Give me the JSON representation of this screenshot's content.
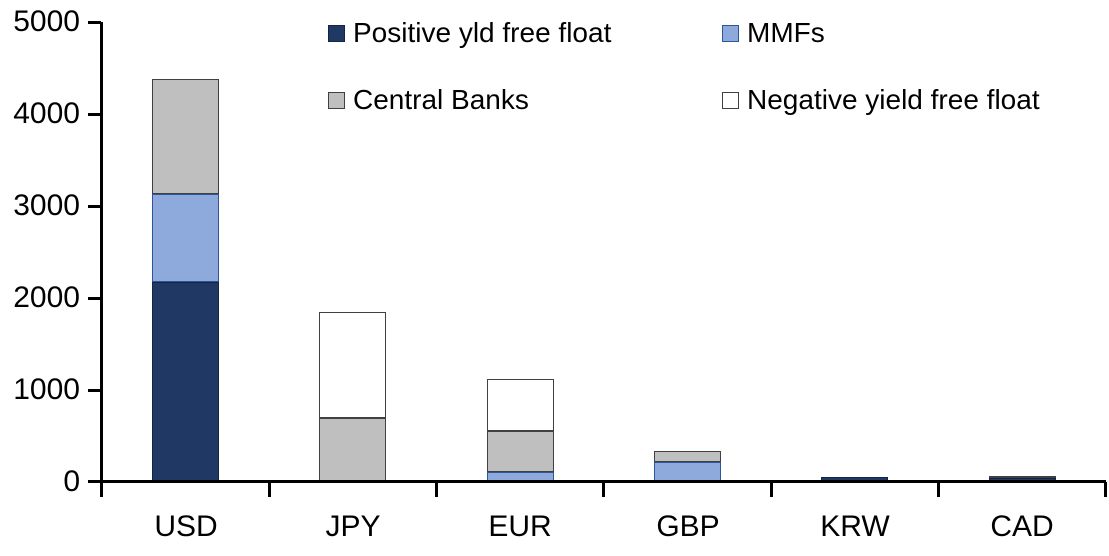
{
  "chart_data": {
    "type": "bar",
    "subtype": "stacked-column",
    "title": "",
    "xlabel": "",
    "ylabel": "",
    "categories": [
      "USD",
      "JPY",
      "EUR",
      "GBP",
      "KRW",
      "CAD"
    ],
    "series": [
      {
        "name": "Positive yld free float",
        "color": "#1F3864",
        "border_color": "#17243F",
        "values": [
          2170,
          0,
          0,
          0,
          50,
          40
        ]
      },
      {
        "name": "MMFs",
        "color": "#8EA9DB",
        "border_color": "#2E5597",
        "values": [
          960,
          0,
          110,
          215,
          0,
          0
        ]
      },
      {
        "name": "Central Banks",
        "color": "#BFBFBF",
        "border_color": "#404040",
        "values": [
          1250,
          700,
          440,
          120,
          0,
          30
        ]
      },
      {
        "name": "Negative yield free float",
        "color": "#FFFFFF",
        "border_color": "#404040",
        "values": [
          0,
          1150,
          565,
          0,
          0,
          0
        ]
      }
    ],
    "totals": [
      4380,
      1850,
      1115,
      335,
      50,
      70
    ],
    "ylim": [
      0,
      5000
    ],
    "yticks": [
      "0",
      "1000",
      "2000",
      "3000",
      "4000",
      "5000"
    ],
    "grid": false,
    "legend_position": "top",
    "legend_columns": 2,
    "axis_color": "#000000"
  }
}
